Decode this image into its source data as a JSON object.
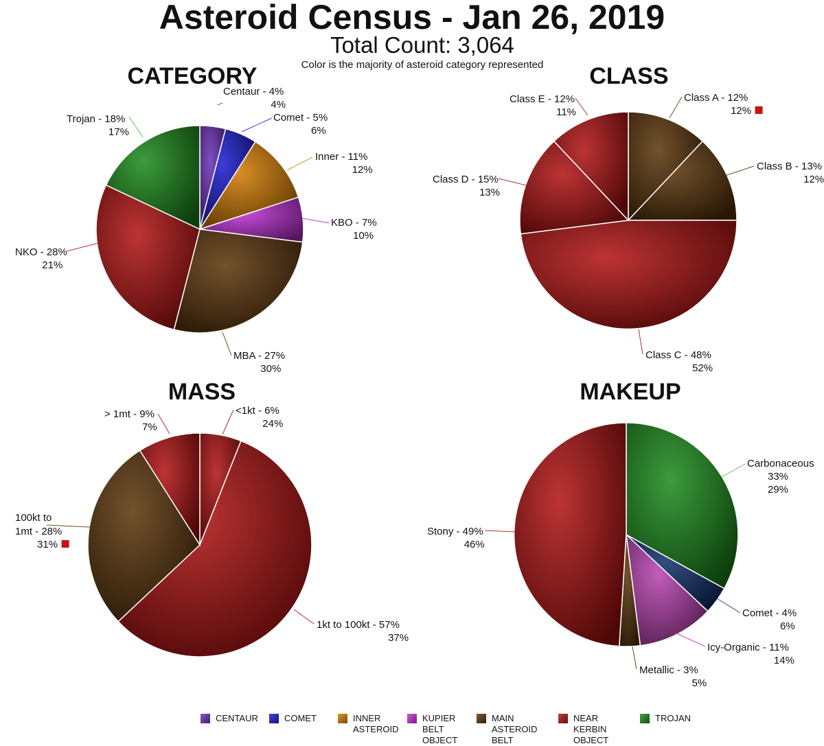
{
  "header": {
    "title": "Asteroid Census - Jan 26, 2019",
    "subtitle": "Total Count: 3,064",
    "note": "Color is the majority of asteroid category represented"
  },
  "colors": {
    "centaur": "#6b2fb8",
    "comet": "#1a1ad0",
    "inner": "#d27a00",
    "kbo": "#c030d8",
    "mba": "#5a3408",
    "nko": "#b01010",
    "trojan": "#1a8a1a",
    "comet_dark": "#0f2f6a",
    "icy": "#b840b0",
    "marker": "#cc1111"
  },
  "chart_data": [
    {
      "type": "pie",
      "title": "CATEGORY",
      "series": [
        {
          "values": [
            4,
            5,
            11,
            7,
            27,
            28,
            18
          ]
        }
      ],
      "slices": [
        {
          "label": "Centaur -",
          "pct1": "4%",
          "pct2": "4%",
          "value": 4,
          "color": "centaur"
        },
        {
          "label": "Comet -",
          "pct1": "5%",
          "pct2": "6%",
          "value": 5,
          "color": "comet"
        },
        {
          "label": "Inner -",
          "pct1": "11%",
          "pct2": "12%",
          "value": 11,
          "color": "inner"
        },
        {
          "label": "KBO -",
          "pct1": "7%",
          "pct2": "10%",
          "value": 7,
          "color": "kbo"
        },
        {
          "label": "MBA -",
          "pct1": "27%",
          "pct2": "30%",
          "value": 27,
          "color": "mba"
        },
        {
          "label": "NKO -",
          "pct1": "28%",
          "pct2": "21%",
          "value": 28,
          "color": "nko"
        },
        {
          "label": "Trojan -",
          "pct1": "18%",
          "pct2": "17%",
          "value": 18,
          "color": "trojan"
        }
      ]
    },
    {
      "type": "pie",
      "title": "CLASS",
      "series": [
        {
          "values": [
            12,
            13,
            48,
            15,
            12
          ]
        }
      ],
      "slices": [
        {
          "label": "Class A -",
          "pct1": "12%",
          "pct2": "12%",
          "value": 12,
          "color": "mba",
          "marker": true
        },
        {
          "label": "Class B -",
          "pct1": "13%",
          "pct2": "12%",
          "value": 13,
          "color": "mba"
        },
        {
          "label": "Class C -",
          "pct1": "48%",
          "pct2": "52%",
          "value": 48,
          "color": "nko"
        },
        {
          "label": "Class D -",
          "pct1": "15%",
          "pct2": "13%",
          "value": 15,
          "color": "nko"
        },
        {
          "label": "Class E -",
          "pct1": "12%",
          "pct2": "11%",
          "value": 12,
          "color": "nko"
        }
      ]
    },
    {
      "type": "pie",
      "title": "MASS",
      "series": [
        {
          "values": [
            6,
            57,
            28,
            9
          ]
        }
      ],
      "slices": [
        {
          "label": "<1kt -",
          "pct1": "6%",
          "pct2": "24%",
          "value": 6,
          "color": "nko"
        },
        {
          "label": "1kt to 100kt -",
          "pct1": "57%",
          "pct2": "37%",
          "value": 57,
          "color": "nko"
        },
        {
          "label": "100kt to",
          "label2": "1mt -",
          "pct1": "28%",
          "pct2": "31%",
          "value": 28,
          "color": "mba",
          "marker": true
        },
        {
          "label": "> 1mt -",
          "pct1": "9%",
          "pct2": "7%",
          "value": 9,
          "color": "nko"
        }
      ]
    },
    {
      "type": "pie",
      "title": "MAKEUP",
      "series": [
        {
          "values": [
            33,
            4,
            11,
            3,
            49
          ]
        }
      ],
      "slices": [
        {
          "label": "Carbonaceous",
          "pct1": "33%",
          "pct2": "29%",
          "value": 33,
          "color": "trojan"
        },
        {
          "label": "Comet -",
          "pct1": "4%",
          "pct2": "6%",
          "value": 4,
          "color": "comet_dark"
        },
        {
          "label": "Icy-Organic -",
          "pct1": "11%",
          "pct2": "14%",
          "value": 11,
          "color": "icy"
        },
        {
          "label": "Metallic -",
          "pct1": "3%",
          "pct2": "5%",
          "value": 3,
          "color": "mba"
        },
        {
          "label": "Stony -",
          "pct1": "49%",
          "pct2": "46%",
          "value": 49,
          "color": "nko"
        }
      ]
    }
  ],
  "legend": [
    {
      "label": "CENTAUR",
      "color": "centaur"
    },
    {
      "label": "COMET",
      "color": "comet"
    },
    {
      "label": "INNER\nASTEROID",
      "color": "inner"
    },
    {
      "label": "KUPIER\nBELT OBJECT",
      "color": "kbo"
    },
    {
      "label": "MAIN\nASTEROID BELT",
      "color": "mba"
    },
    {
      "label": "NEAR\nKERBIN OBJECT",
      "color": "nko"
    },
    {
      "label": "TROJAN",
      "color": "trojan"
    }
  ]
}
